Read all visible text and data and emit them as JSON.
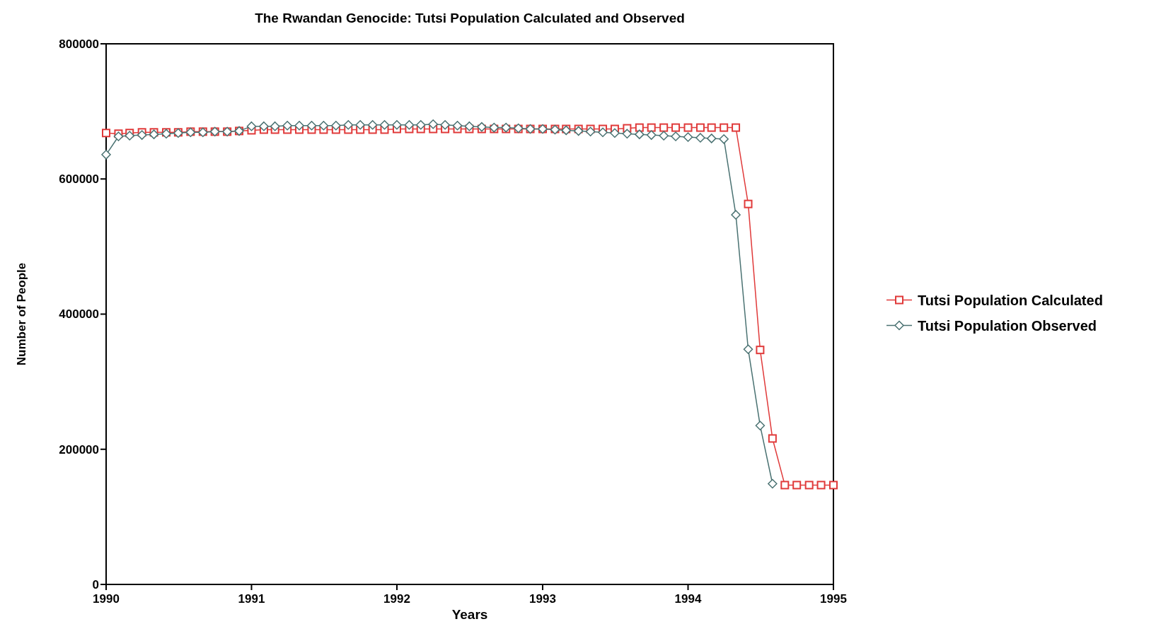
{
  "chart_data": {
    "type": "line",
    "title": "The Rwandan Genocide: Tutsi Population Calculated and Observed",
    "xlabel": "Years",
    "ylabel": "Number of People",
    "x": [
      "1990-01",
      "1990-02",
      "1990-03",
      "1990-04",
      "1990-05",
      "1990-06",
      "1990-07",
      "1990-08",
      "1990-09",
      "1990-10",
      "1990-11",
      "1990-12",
      "1991-01",
      "1991-02",
      "1991-03",
      "1991-04",
      "1991-05",
      "1991-06",
      "1991-07",
      "1991-08",
      "1991-09",
      "1991-10",
      "1991-11",
      "1991-12",
      "1992-01",
      "1992-02",
      "1992-03",
      "1992-04",
      "1992-05",
      "1992-06",
      "1992-07",
      "1992-08",
      "1992-09",
      "1992-10",
      "1992-11",
      "1992-12",
      "1993-01",
      "1993-02",
      "1993-03",
      "1993-04",
      "1993-05",
      "1993-06",
      "1993-07",
      "1993-08",
      "1993-09",
      "1993-10",
      "1993-11",
      "1993-12",
      "1994-01",
      "1994-02",
      "1994-03",
      "1994-04",
      "1994-05",
      "1994-06",
      "1994-07",
      "1994-08",
      "1994-09",
      "1994-10",
      "1994-11",
      "1994-12",
      "1995-01"
    ],
    "series": [
      {
        "name": "Tutsi Population Calculated",
        "color": "#e03a3a",
        "marker": "square",
        "values": [
          668000,
          667000,
          668000,
          669000,
          669000,
          669000,
          669000,
          670000,
          670000,
          670000,
          670000,
          671000,
          672000,
          673000,
          673000,
          673000,
          673000,
          673000,
          673000,
          673000,
          673000,
          673000,
          673000,
          673000,
          674000,
          674000,
          674000,
          674000,
          674000,
          674000,
          674000,
          674000,
          674000,
          674000,
          674000,
          674000,
          674000,
          674000,
          674000,
          674000,
          674000,
          674000,
          674000,
          675000,
          676000,
          676000,
          676000,
          676000,
          676000,
          676000,
          676000,
          676000,
          676000,
          563000,
          347000,
          216000,
          147000,
          147000,
          147000,
          147000,
          147000
        ]
      },
      {
        "name": "Tutsi Population Observed",
        "color": "#4a7272",
        "marker": "diamond",
        "values": [
          636000,
          663000,
          664000,
          665000,
          666000,
          667000,
          668000,
          669000,
          669000,
          670000,
          670000,
          671000,
          678000,
          678000,
          678000,
          679000,
          679000,
          679000,
          679000,
          679000,
          680000,
          680000,
          680000,
          680000,
          680000,
          680000,
          680000,
          681000,
          680000,
          679000,
          678000,
          677000,
          676000,
          676000,
          675000,
          674000,
          674000,
          673000,
          672000,
          671000,
          670000,
          669000,
          668000,
          667000,
          666000,
          665000,
          664000,
          663000,
          662000,
          661000,
          660000,
          659000,
          547000,
          348000,
          235000,
          149000,
          null,
          null,
          null,
          null,
          null
        ]
      }
    ],
    "xlim": [
      "1990-01",
      "1995-01"
    ],
    "xticks": [
      {
        "value": "1990-01",
        "label": "1990"
      },
      {
        "value": "1991-01",
        "label": "1991"
      },
      {
        "value": "1992-01",
        "label": "1992"
      },
      {
        "value": "1993-01",
        "label": "1993"
      },
      {
        "value": "1994-01",
        "label": "1994"
      },
      {
        "value": "1995-01",
        "label": "1995"
      }
    ],
    "ylim": [
      0,
      800000
    ],
    "yticks": [
      0,
      200000,
      400000,
      600000,
      800000
    ],
    "grid": false,
    "legend": "right",
    "line_style": "solid"
  }
}
